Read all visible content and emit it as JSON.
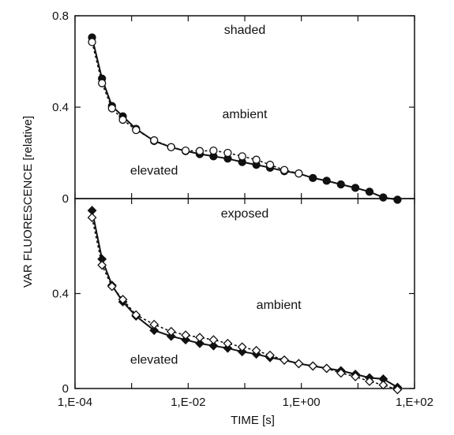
{
  "chart_data": [
    {
      "type": "line",
      "panel": "top",
      "xscale": "log",
      "xlim": [
        0.0001,
        100
      ],
      "ylim": [
        0,
        0.8
      ],
      "yticks": [
        {
          "value": 0,
          "label": "0"
        },
        {
          "value": 0.4,
          "label": "0.4"
        },
        {
          "value": 0.8,
          "label": "0.8"
        }
      ],
      "annotations": [
        {
          "text": "shaded",
          "x": 0.1,
          "y": 0.72
        },
        {
          "text": "ambient",
          "x": 0.1,
          "y": 0.352
        },
        {
          "text": "elevated",
          "x": 0.0025,
          "y": 0.105
        }
      ],
      "series": [
        {
          "marker": "filled-circle",
          "line": "solid",
          "x": [
            0.0002,
            0.0003,
            0.00045,
            0.0007,
            0.0012,
            0.0025,
            0.005,
            0.009,
            0.016,
            0.028,
            0.05,
            0.09,
            0.16,
            0.28,
            0.5,
            0.9,
            1.6,
            2.8,
            5,
            9,
            16,
            28,
            50
          ],
          "y": [
            0.705,
            0.525,
            0.405,
            0.36,
            0.305,
            0.252,
            0.225,
            0.208,
            0.195,
            0.185,
            0.175,
            0.16,
            0.148,
            0.135,
            0.12,
            0.11,
            0.09,
            0.078,
            0.062,
            0.047,
            0.03,
            0.005,
            -0.005
          ]
        },
        {
          "marker": "open-circle",
          "line": "dotted",
          "x": [
            0.0002,
            0.0003,
            0.00045,
            0.0007,
            0.0012,
            0.0025,
            0.005,
            0.009,
            0.016,
            0.028,
            0.05,
            0.09,
            0.16,
            0.28,
            0.5,
            0.9
          ],
          "y": [
            0.685,
            0.505,
            0.395,
            0.345,
            0.3,
            0.255,
            0.225,
            0.21,
            0.208,
            0.21,
            0.2,
            0.185,
            0.17,
            0.148,
            0.125,
            0.11
          ]
        }
      ]
    },
    {
      "type": "line",
      "panel": "bottom",
      "xscale": "log",
      "xlim": [
        0.0001,
        100
      ],
      "ylim": [
        0,
        0.8
      ],
      "yticks": [
        {
          "value": 0,
          "label": "0"
        },
        {
          "value": 0.4,
          "label": "0.4"
        }
      ],
      "xticks": [
        {
          "value": 0.0001,
          "label": "1,E-04"
        },
        {
          "value": 0.01,
          "label": "1,E-02"
        },
        {
          "value": 1,
          "label": "1,E+00"
        },
        {
          "value": 100,
          "label": "1,E+02"
        }
      ],
      "xlabel": "TIME [s]",
      "annotations": [
        {
          "text": "exposed",
          "x": 0.1,
          "y": 0.72
        },
        {
          "text": "ambient",
          "x": 0.4,
          "y": 0.335
        },
        {
          "text": "elevated",
          "x": 0.0025,
          "y": 0.105
        }
      ],
      "series": [
        {
          "marker": "filled-diamond",
          "line": "solid",
          "x": [
            0.0002,
            0.0003,
            0.00045,
            0.0007,
            0.0012,
            0.0025,
            0.005,
            0.009,
            0.016,
            0.028,
            0.05,
            0.09,
            0.16,
            0.28,
            0.5,
            0.9,
            1.6,
            2.8,
            5,
            9,
            16,
            28,
            50
          ],
          "y": [
            0.75,
            0.545,
            0.435,
            0.365,
            0.305,
            0.245,
            0.22,
            0.205,
            0.19,
            0.18,
            0.17,
            0.155,
            0.145,
            0.13,
            0.12,
            0.105,
            0.095,
            0.085,
            0.075,
            0.06,
            0.045,
            0.04,
            0.005
          ]
        },
        {
          "marker": "open-diamond",
          "line": "dotted",
          "x": [
            0.0002,
            0.0003,
            0.00045,
            0.0007,
            0.0012,
            0.0025,
            0.005,
            0.009,
            0.016,
            0.028,
            0.05,
            0.09,
            0.16,
            0.28,
            0.5,
            0.9,
            1.6,
            2.8,
            5,
            9,
            16,
            28,
            50
          ],
          "y": [
            0.72,
            0.52,
            0.43,
            0.375,
            0.31,
            0.27,
            0.24,
            0.225,
            0.215,
            0.205,
            0.19,
            0.175,
            0.16,
            0.14,
            0.12,
            0.105,
            0.095,
            0.085,
            0.065,
            0.05,
            0.03,
            0.015,
            -0.005
          ]
        }
      ]
    }
  ],
  "shared_ylabel": "VAR FLUORESCENCE [relative]",
  "colors": {
    "ink": "#111111",
    "background": "#ffffff"
  }
}
